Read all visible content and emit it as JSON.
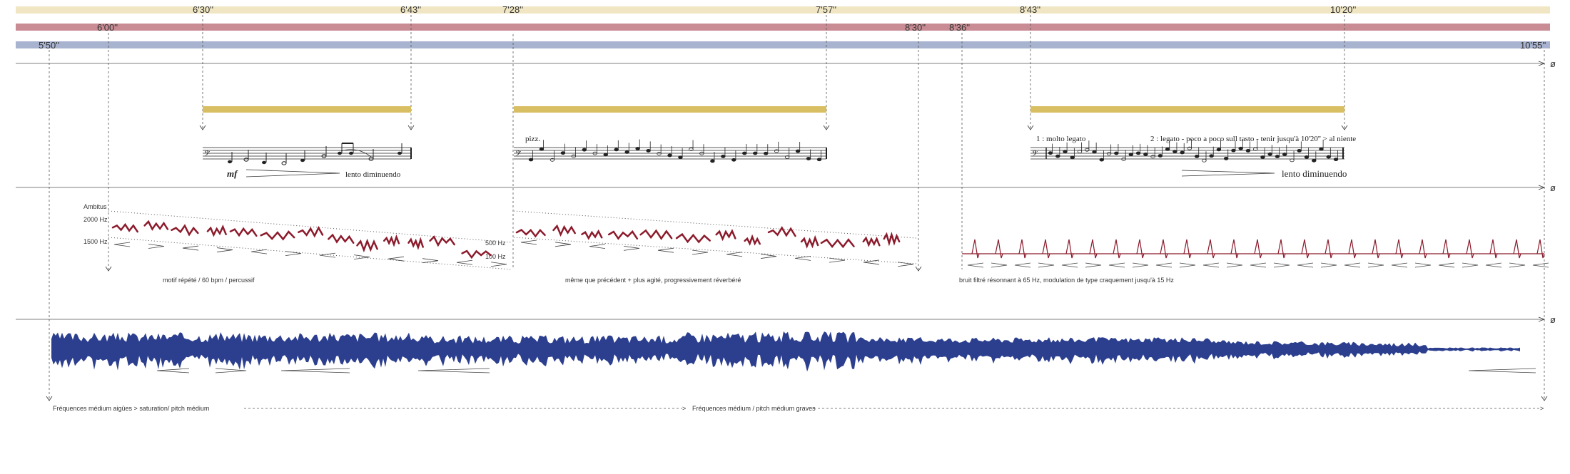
{
  "timeline_bars": {
    "bar1": {
      "start_label": "6'30''",
      "mid_label": "6'43''",
      "label3": "7'28''",
      "label4": "7'57''",
      "label5": "8'43''",
      "end_label": "10'20''",
      "color": "#f0e6c3"
    },
    "bar2": {
      "start_label": "6'00''",
      "label2": "8'30''",
      "label3": "8'36''",
      "color": "#c98c94"
    },
    "bar3": {
      "start_label": "5'50''",
      "end_label": "10'55''",
      "color": "#a7b3cf"
    }
  },
  "section_symbol": "ø",
  "gold_color": "#d9bf64",
  "wine_color": "#8b1a2b",
  "wave_color": "#2c3f8e",
  "music": {
    "dynamic": "mf",
    "phrase1_text": "lento diminuendo",
    "pizz": "pizz.",
    "legato_a": "1 : molto legato",
    "legato_b": "2 : legato - poco a poco sull tasto - tenir jusqu'à 10'20'' > al niente",
    "phrase3_text": "lento diminuendo"
  },
  "electronics": {
    "ambitus": "Ambitus",
    "hz_2000": "2000 Hz",
    "hz_1500": "1500 Hz",
    "hz_500": "500 Hz",
    "hz_100": "100 Hz",
    "desc1": "motif répété / 60 bpm / percussif",
    "desc2": "même que précédent + plus agité, progressivement réverbéré",
    "desc3": "bruit filtré résonnant à 65 Hz, modulation de type craquement jusqu'à 15 Hz"
  },
  "footer": {
    "text1": "Fréquences médium aigües > saturation/ pitch médium",
    "text2": "Fréquences médium / pitch médium graves"
  }
}
